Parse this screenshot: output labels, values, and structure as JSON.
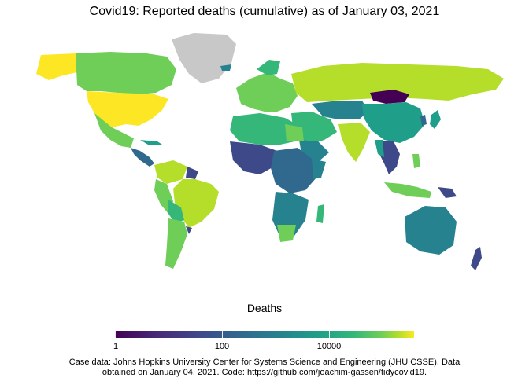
{
  "title": "Covid19: Reported deaths (cumulative) as of January 03, 2021",
  "legend": {
    "title": "Deaths",
    "scale": "log10",
    "ticks": [
      "1",
      "100",
      "10000"
    ],
    "colors": [
      "#440154",
      "#31688e",
      "#1f9e89",
      "#6ece58",
      "#fde725"
    ],
    "no_data_color": "#c8c8c8"
  },
  "caption": {
    "line1": "Case data: Johns Hopkins University Center for Systems Science and Engineering (JHU CSSE). Data",
    "line2": "obtained on January 04, 2021. Code: https://github.com/joachim-gassen/tidycovid19."
  }
}
